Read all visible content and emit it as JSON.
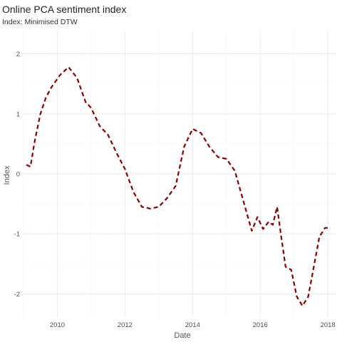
{
  "chart_data": {
    "type": "line",
    "title": "Online PCA sentiment index",
    "subtitle": "Index: Minimised DTW",
    "xlabel": "Date",
    "ylabel": "Index",
    "xlim": [
      "2009-01-01",
      "2018-04-01"
    ],
    "ylim": [
      -2.4,
      2.4
    ],
    "x_ticks": [
      "2010",
      "2012",
      "2014",
      "2016",
      "2018"
    ],
    "y_ticks": [
      "-2",
      "-1",
      "0",
      "1",
      "2"
    ],
    "grid": true,
    "line_color": "#8b0000",
    "series": [
      {
        "x": [
          "2009-02-01",
          "2009-03-15",
          "2009-05-01",
          "2009-07-01",
          "2009-09-01",
          "2009-11-01",
          "2010-02-01",
          "2010-05-01",
          "2010-08-01",
          "2010-11-01",
          "2011-01-01",
          "2011-04-01",
          "2011-07-01",
          "2011-10-01",
          "2012-01-01",
          "2012-04-01",
          "2012-07-01",
          "2012-10-01",
          "2013-01-01",
          "2013-04-01",
          "2013-07-01",
          "2013-10-01",
          "2014-01-01",
          "2014-04-01",
          "2014-07-01",
          "2014-10-01",
          "2015-01-01",
          "2015-04-01",
          "2015-07-01",
          "2015-10-01",
          "2015-12-01",
          "2016-02-01",
          "2016-04-01",
          "2016-05-15",
          "2016-07-01",
          "2016-08-15",
          "2016-10-01",
          "2016-12-01",
          "2017-02-01",
          "2017-04-01",
          "2017-06-01",
          "2017-08-01",
          "2017-10-01",
          "2017-12-01",
          "2018-02-01"
        ],
        "y": [
          0.15,
          0.12,
          0.55,
          1.0,
          1.28,
          1.45,
          1.65,
          1.78,
          1.6,
          1.2,
          1.1,
          0.8,
          0.65,
          0.35,
          0.08,
          -0.3,
          -0.55,
          -0.58,
          -0.55,
          -0.4,
          -0.2,
          0.45,
          0.75,
          0.68,
          0.45,
          0.28,
          0.25,
          0.05,
          -0.45,
          -0.95,
          -0.72,
          -0.92,
          -0.8,
          -0.85,
          -0.55,
          -1.05,
          -1.55,
          -1.6,
          -2.05,
          -2.2,
          -2.05,
          -1.55,
          -1.05,
          -0.9,
          -0.9
        ]
      }
    ]
  }
}
